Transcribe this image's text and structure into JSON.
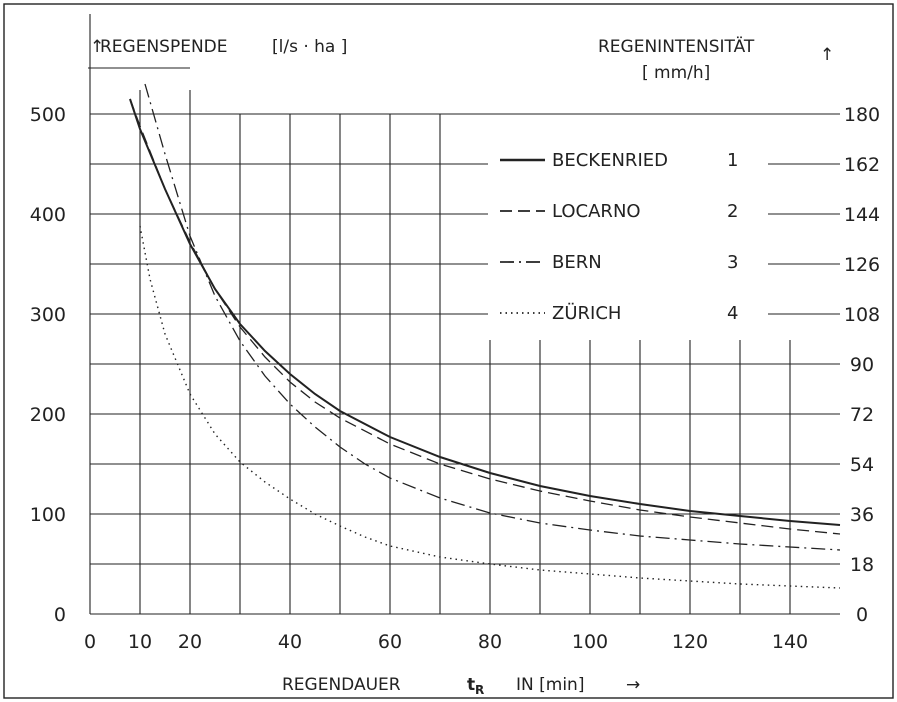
{
  "chart_data": {
    "type": "line",
    "xlabel_main": "REGENDAUER",
    "xlabel_symbol": "t",
    "xlabel_symbol_sub": "R",
    "xlabel_unit": "IN [min]",
    "xlabel_arrow": "→",
    "ylabel_left": "REGENSPENDE",
    "ylabel_left_unit": "[l/s · ha ]",
    "ylabel_left_arrow": "↑",
    "ylabel_right_line1": "REGENINTENSITÄT",
    "ylabel_right_line2": "[ mm/h]",
    "ylabel_right_arrow": "↑",
    "xlim": [
      0,
      150
    ],
    "ylim": [
      0,
      500
    ],
    "y2lim": [
      0,
      180
    ],
    "x_ticks": [
      "0",
      "10",
      "20",
      "40",
      "60",
      "80",
      "100",
      "120",
      "140"
    ],
    "y_ticks": [
      "0",
      "100",
      "200",
      "300",
      "400",
      "500"
    ],
    "y2_ticks": [
      "0",
      "18",
      "36",
      "54",
      "72",
      "90",
      "108",
      "126",
      "144",
      "162",
      "180"
    ],
    "grid": true,
    "legend_position": "upper-right",
    "series": [
      {
        "name": "BECKENRIED",
        "number": "1",
        "style": "solid",
        "x": [
          8,
          10,
          15,
          20,
          25,
          30,
          35,
          40,
          45,
          50,
          60,
          70,
          80,
          90,
          100,
          110,
          120,
          130,
          140,
          150
        ],
        "values": [
          515,
          485,
          425,
          370,
          325,
          290,
          263,
          240,
          220,
          203,
          177,
          157,
          141,
          128,
          118,
          110,
          103,
          98,
          93,
          89
        ]
      },
      {
        "name": "LOCARNO",
        "number": "2",
        "style": "dashed",
        "x": [
          8,
          10,
          15,
          20,
          25,
          30,
          35,
          40,
          45,
          50,
          60,
          70,
          80,
          90,
          100,
          110,
          120,
          130,
          140,
          150
        ],
        "values": [
          515,
          488,
          425,
          372,
          325,
          287,
          257,
          232,
          212,
          196,
          170,
          150,
          135,
          123,
          113,
          104,
          97,
          91,
          85,
          80
        ]
      },
      {
        "name": "BERN",
        "number": "3",
        "style": "dashdot",
        "x": [
          11,
          15,
          20,
          25,
          30,
          35,
          40,
          45,
          50,
          55,
          60,
          70,
          80,
          90,
          100,
          110,
          120,
          130,
          140,
          150
        ],
        "values": [
          530,
          460,
          378,
          318,
          273,
          238,
          210,
          187,
          167,
          150,
          136,
          116,
          101,
          91,
          84,
          78,
          74,
          70,
          67,
          64
        ]
      },
      {
        "name": "ZÜRICH",
        "number": "4",
        "style": "dotted",
        "x": [
          10,
          12,
          15,
          20,
          25,
          30,
          35,
          40,
          45,
          50,
          55,
          60,
          70,
          80,
          90,
          100,
          110,
          120,
          130,
          140,
          150
        ],
        "values": [
          388,
          335,
          280,
          220,
          180,
          152,
          132,
          115,
          100,
          88,
          77,
          68,
          57,
          50,
          44,
          40,
          36,
          33,
          30,
          28,
          26
        ]
      }
    ]
  }
}
